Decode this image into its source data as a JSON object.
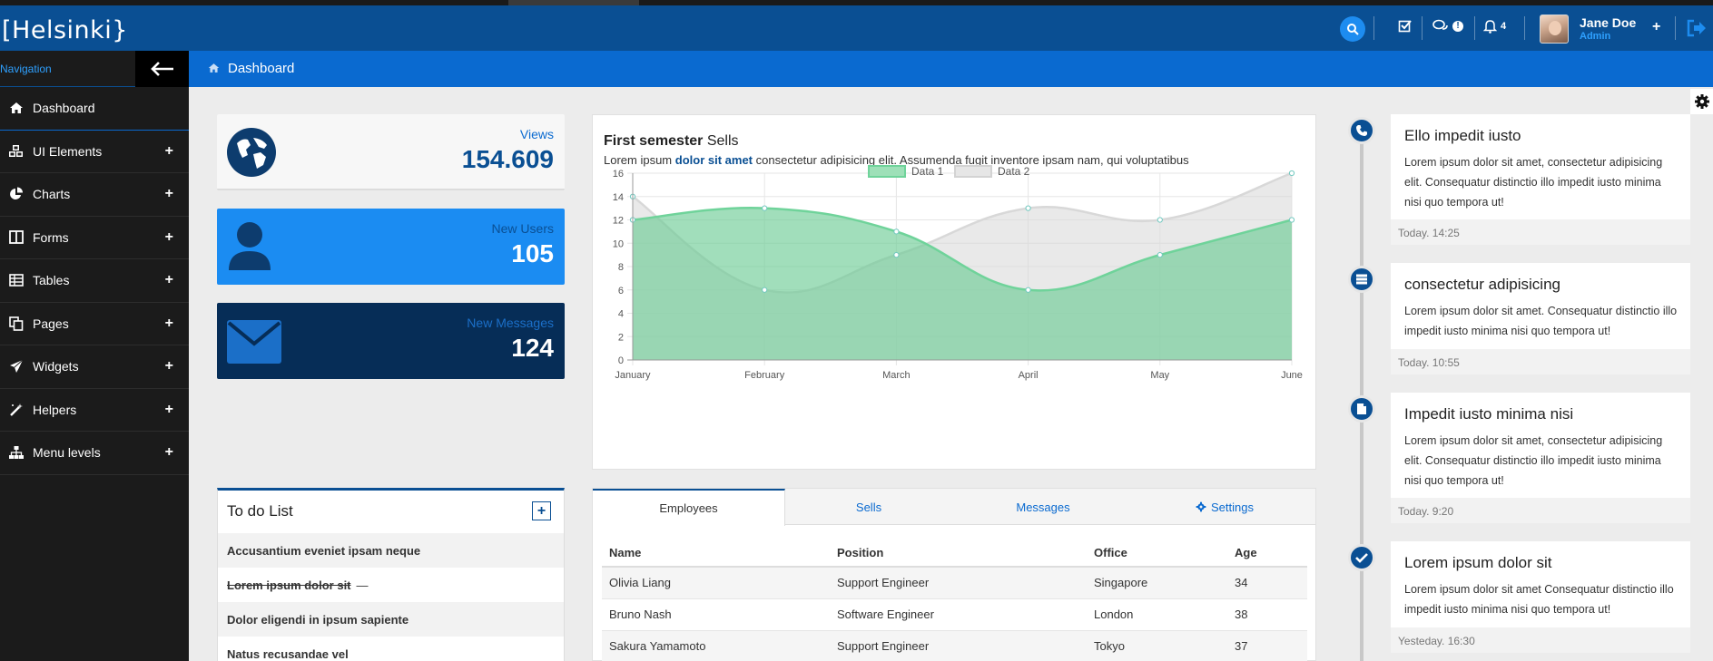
{
  "header": {
    "logo": "[Helsinki}",
    "messages_badge": "!",
    "notifications_count": "4",
    "user": {
      "name": "Jane Doe",
      "role": "Admin"
    },
    "plus": "+"
  },
  "sidebar": {
    "title": "Navigation",
    "items": [
      {
        "label": "Dashboard",
        "icon": "home-icon",
        "expandable": false
      },
      {
        "label": "UI Elements",
        "icon": "cubes-icon",
        "expandable": true
      },
      {
        "label": "Charts",
        "icon": "pie-chart-icon",
        "expandable": true
      },
      {
        "label": "Forms",
        "icon": "columns-icon",
        "expandable": true
      },
      {
        "label": "Tables",
        "icon": "table-icon",
        "expandable": true
      },
      {
        "label": "Pages",
        "icon": "copy-icon",
        "expandable": true
      },
      {
        "label": "Widgets",
        "icon": "paper-plane-icon",
        "expandable": true
      },
      {
        "label": "Helpers",
        "icon": "magic-wand-icon",
        "expandable": true
      },
      {
        "label": "Menu levels",
        "icon": "sitemap-icon",
        "expandable": true
      }
    ],
    "plus": "+"
  },
  "breadcrumb": {
    "label": "Dashboard"
  },
  "stats": {
    "views": {
      "label": "Views",
      "value": "154.609"
    },
    "users": {
      "label": "New Users",
      "value": "105"
    },
    "messages": {
      "label": "New Messages",
      "value": "124"
    }
  },
  "chart": {
    "title_bold": "First semester",
    "title_rest": "Sells",
    "sub_start": "Lorem ipsum",
    "sub_bold": "dolor sit amet",
    "sub_end": "consectetur adipisicing elit. Assumenda fugit inventore ipsam nam, qui voluptatibus"
  },
  "chart_data": {
    "type": "area",
    "categories": [
      "January",
      "February",
      "March",
      "April",
      "May",
      "June"
    ],
    "series": [
      {
        "name": "Data 1",
        "values": [
          12,
          13,
          11,
          6,
          9,
          12
        ],
        "color": "#7dd3a0"
      },
      {
        "name": "Data 2",
        "values": [
          14,
          6,
          9,
          13,
          12,
          16
        ],
        "color": "#e2e2e2"
      }
    ],
    "yticks": [
      "0",
      "2",
      "4",
      "6",
      "8",
      "10",
      "12",
      "14",
      "16"
    ],
    "ylim": [
      0,
      16
    ],
    "grid": true,
    "legend": "top-center"
  },
  "todo": {
    "title": "To do List",
    "add": "+",
    "items": [
      {
        "text": "Accusantium eveniet ipsam neque",
        "done": false
      },
      {
        "text": "Lorem ipsum dolor sit",
        "done": true,
        "dash": "—"
      },
      {
        "text": "Dolor eligendi in ipsum sapiente",
        "done": false
      },
      {
        "text": "Natus recusandae vel",
        "done": false
      }
    ]
  },
  "table": {
    "tabs": [
      "Employees",
      "Sells",
      "Messages",
      "Settings"
    ],
    "columns": [
      "Name",
      "Position",
      "Office",
      "Age"
    ],
    "rows": [
      [
        "Olivia Liang",
        "Support Engineer",
        "Singapore",
        "34"
      ],
      [
        "Bruno Nash",
        "Software Engineer",
        "London",
        "38"
      ],
      [
        "Sakura Yamamoto",
        "Support Engineer",
        "Tokyo",
        "37"
      ]
    ]
  },
  "timeline": [
    {
      "title": "Ello impedit iusto",
      "body": "Lorem ipsum dolor sit amet, consectetur adipisicing elit. Consequatur distinctio illo impedit iusto minima nisi quo tempora ut!",
      "time": "Today. 14:25",
      "icon": "phone-icon"
    },
    {
      "title": "consectetur adipisicing",
      "body": "Lorem ipsum dolor sit amet. Consequatur distinctio illo impedit iusto minima nisi quo tempora ut!",
      "time": "Today. 10:55",
      "icon": "server-icon"
    },
    {
      "title": "Impedit iusto minima nisi",
      "body": "Lorem ipsum dolor sit amet, consectetur adipisicing elit. Consequatur distinctio illo impedit iusto minima nisi quo tempora ut!",
      "time": "Today. 9:20",
      "icon": "file-icon"
    },
    {
      "title": "Lorem ipsum dolor sit",
      "body": "Lorem ipsum dolor sit amet Consequatur distinctio illo impedit iusto minima nisi quo tempora ut!",
      "time": "Yesteday. 16:30",
      "icon": "check-icon"
    }
  ]
}
